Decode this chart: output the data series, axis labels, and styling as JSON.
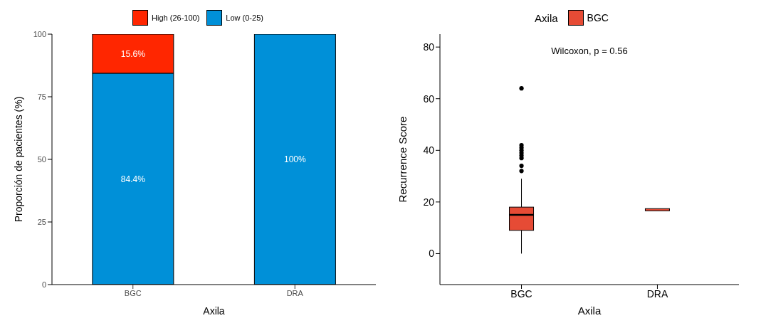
{
  "chart_data": [
    {
      "type": "bar",
      "stacked": true,
      "xlabel": "Axila",
      "ylabel": "Proporción de pacientes (%)",
      "categories": [
        "BGC",
        "DRA"
      ],
      "ylim": [
        0,
        100
      ],
      "yticks": [
        0,
        25,
        50,
        75,
        100
      ],
      "legend": "top",
      "series": [
        {
          "name": "Low (0-25)",
          "color": "#0090d8",
          "values": [
            84.4,
            100
          ],
          "value_labels": [
            "84.4%",
            "100%"
          ]
        },
        {
          "name": "High (26-100)",
          "color": "#ff2600",
          "values": [
            15.6,
            0
          ],
          "value_labels": [
            "15.6%",
            null
          ]
        }
      ]
    },
    {
      "type": "box",
      "xlabel": "Axila",
      "ylabel": "Recurrence Score",
      "legend_title": "Axila",
      "legend": "top",
      "categories": [
        "BGC",
        "DRA"
      ],
      "ylim": [
        -12,
        85
      ],
      "yticks": [
        0,
        20,
        40,
        60,
        80
      ],
      "annotations": [
        "Wilcoxon, p = 0.56"
      ],
      "series": [
        {
          "name": "BGC",
          "color": "#e64b35",
          "boxes": [
            {
              "low": 0,
              "q1": 9,
              "median": 15,
              "q3": 18,
              "high": 29
            },
            {
              "low": 17,
              "q1": 17,
              "median": 17,
              "q3": 17,
              "high": 17
            }
          ]
        },
        {
          "type": "scatter",
          "color": "#000000",
          "marker": "circle",
          "x": [
            "BGC",
            "BGC",
            "BGC",
            "BGC",
            "BGC",
            "BGC",
            "BGC",
            "BGC",
            "BGC"
          ],
          "values": [
            32,
            34,
            37,
            38,
            39,
            40,
            41,
            42,
            64
          ]
        }
      ]
    }
  ]
}
